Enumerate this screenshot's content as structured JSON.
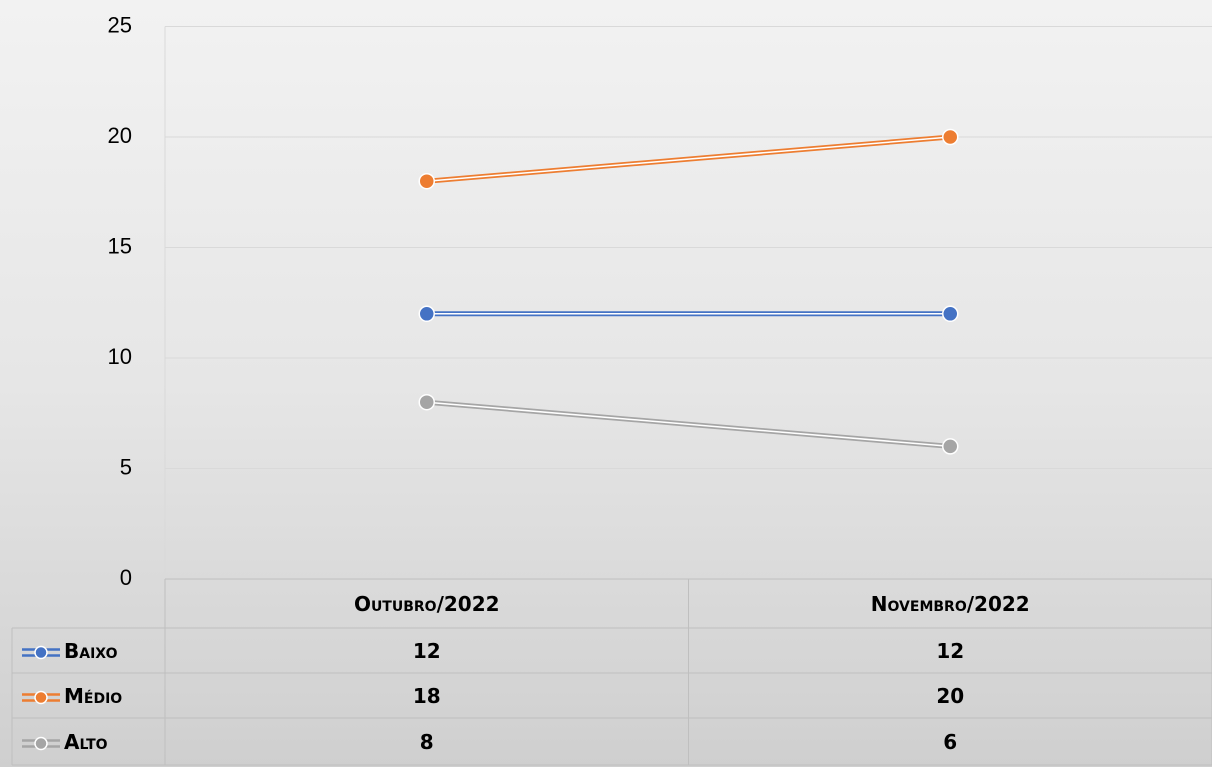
{
  "chart_data": {
    "type": "line",
    "categories": [
      "Outubro/2022",
      "Novembro/2022"
    ],
    "series": [
      {
        "name": "Baixo",
        "color": "#4472c4",
        "values": [
          12,
          12
        ]
      },
      {
        "name": "Médio",
        "color": "#ed7d31",
        "values": [
          18,
          20
        ]
      },
      {
        "name": "Alto",
        "color": "#a5a5a5",
        "values": [
          8,
          6
        ]
      }
    ],
    "ylim": [
      0,
      25
    ],
    "yticks": [
      0,
      5,
      10,
      15,
      20,
      25
    ],
    "grid": true
  }
}
